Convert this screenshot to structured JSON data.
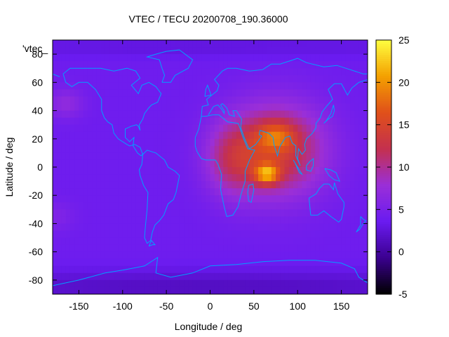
{
  "chart_data": {
    "type": "heatmap",
    "title": "VTEC / TECU 20200708_190.36000",
    "xlabel": "Longitude / deg",
    "ylabel": "Latitude / deg",
    "series_label": "'vtec_",
    "xlim": [
      -180,
      180
    ],
    "ylim": [
      -90,
      90
    ],
    "x_ticks": [
      -150,
      -100,
      -50,
      0,
      50,
      100,
      150
    ],
    "y_ticks": [
      -80,
      -60,
      -40,
      -20,
      0,
      20,
      40,
      60,
      80
    ],
    "colorbar": {
      "range": [
        -5,
        25
      ],
      "ticks": [
        -5,
        0,
        5,
        10,
        15,
        20,
        25
      ]
    },
    "colormap": [
      "#000000",
      "#3b0090",
      "#6a1bf0",
      "#9a2fd8",
      "#c4304e",
      "#e0501a",
      "#f4a000",
      "#ffff40"
    ],
    "features": {
      "equatorial_peak": {
        "lon": 65,
        "lat": -5,
        "vtec": 25
      },
      "northern_crest": {
        "lon": 75,
        "lat": 22,
        "vtec": 21
      },
      "background_vtec": 4,
      "polar_min_vtec": 1
    },
    "coastline_color": "#00a0ff"
  }
}
